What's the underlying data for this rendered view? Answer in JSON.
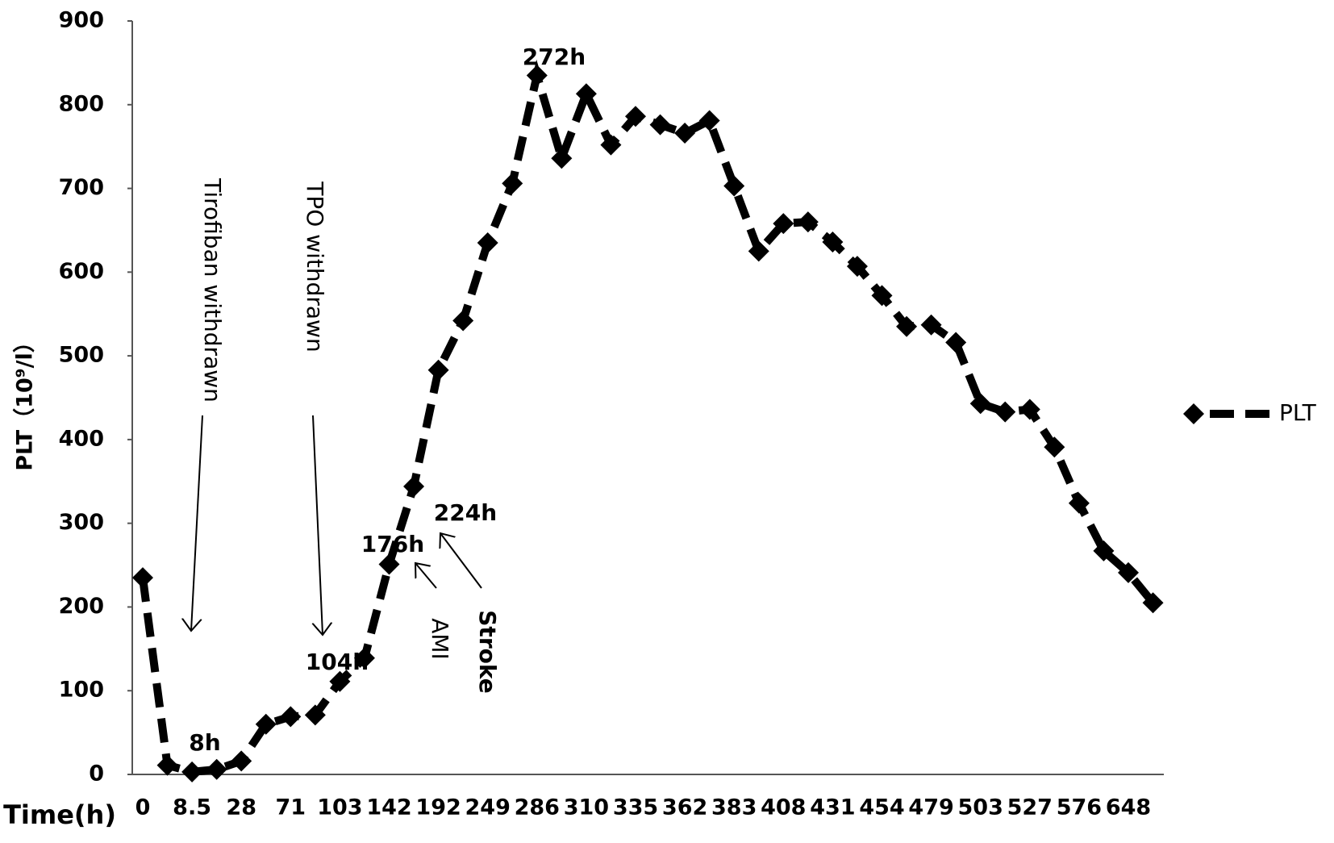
{
  "chart_data": {
    "type": "line",
    "y_label": "PLT（10⁹/l）",
    "x_label": "Time(h)",
    "categories": [
      "0",
      null,
      "8.5",
      null,
      "28",
      null,
      "71",
      null,
      "103",
      null,
      "142",
      null,
      "192",
      null,
      "249",
      null,
      "286",
      null,
      "310",
      null,
      "335",
      null,
      "362",
      null,
      "383",
      null,
      "408",
      null,
      "431",
      null,
      "454",
      null,
      "479",
      null,
      "503",
      null,
      "527",
      null,
      "576",
      null,
      "648",
      null
    ],
    "series": [
      {
        "name": "PLT",
        "color": "#000000",
        "values": [
          235,
          11,
          3,
          6,
          16,
          60,
          69,
          71,
          111,
          139,
          251,
          344,
          483,
          542,
          635,
          706,
          835,
          736,
          813,
          752,
          786,
          776,
          766,
          781,
          703,
          625,
          658,
          660,
          636,
          607,
          572,
          535,
          537,
          516,
          443,
          433,
          436,
          391,
          324,
          267,
          241,
          205
        ]
      }
    ],
    "ylim": [
      0,
      900
    ],
    "yticks": [
      0,
      100,
      200,
      300,
      400,
      500,
      600,
      700,
      800,
      900
    ],
    "grid": false,
    "legend": "right",
    "annotations": [
      "8h",
      "104h",
      "176h",
      "224h",
      "272h",
      "Tirofiban withdrawn",
      "TPO withdrawn",
      "AMI",
      "Stroke"
    ]
  }
}
